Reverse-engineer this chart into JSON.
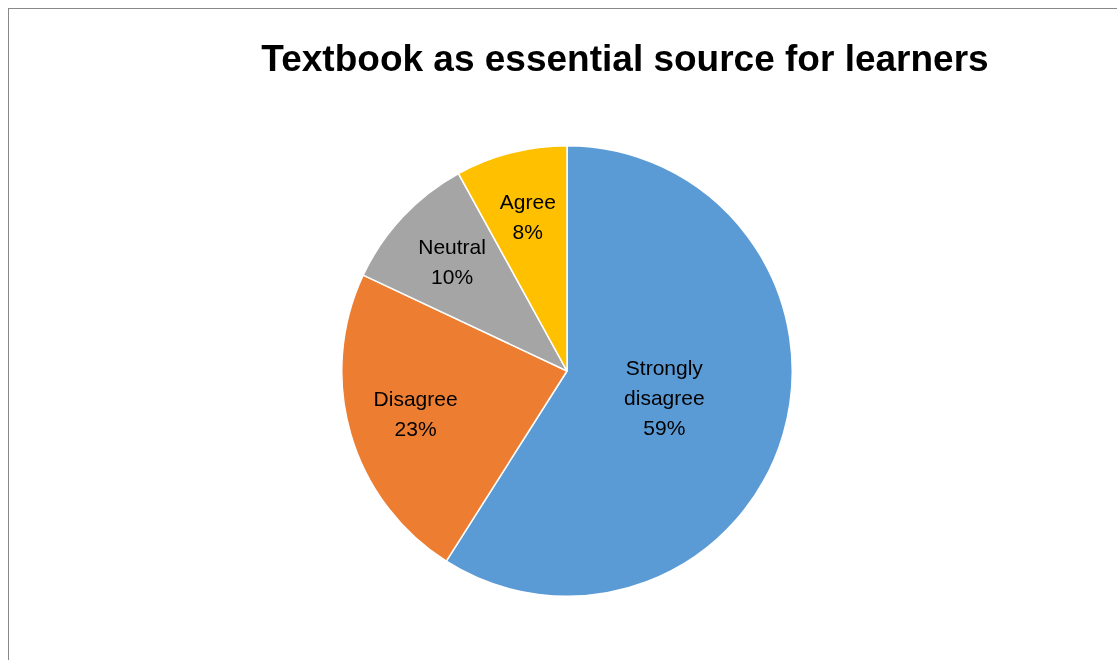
{
  "chart_data": {
    "type": "pie",
    "title": "Textbook as essential source for learners",
    "categories": [
      "Strongly disagree",
      "Disagree",
      "Neutral",
      "Agree"
    ],
    "values": [
      59,
      23,
      10,
      8
    ],
    "value_labels": [
      "59%",
      "23%",
      "10%",
      "8%"
    ],
    "colors": [
      "#5b9bd5",
      "#ed7d31",
      "#a5a5a5",
      "#ffc000"
    ],
    "legend": false
  }
}
